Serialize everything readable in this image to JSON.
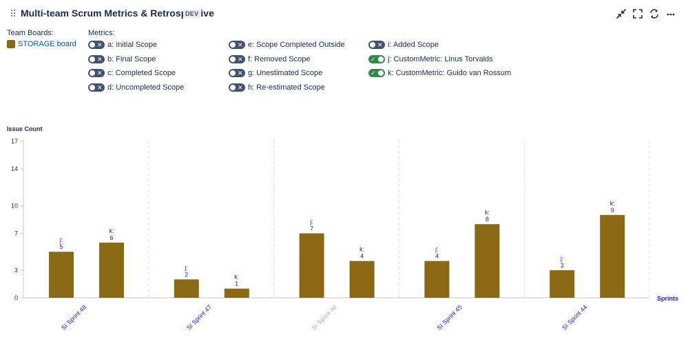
{
  "header": {
    "title": "Multi-team Scrum Metrics & Retrospective",
    "badge": "DEV",
    "icons": [
      "collapse-icon",
      "fullscreen-icon",
      "refresh-icon",
      "more-icon"
    ]
  },
  "team_boards": {
    "label": "Team Boards:",
    "items": [
      {
        "label": "STORAGE board",
        "color": "#8b6914"
      }
    ]
  },
  "metrics": {
    "label": "Metrics:",
    "items": [
      {
        "label": "a: Initial Scope",
        "on": false
      },
      {
        "label": "b: Final Scope",
        "on": false
      },
      {
        "label": "c: Completed Scope",
        "on": false
      },
      {
        "label": "d: Uncompleted Scope",
        "on": false
      },
      {
        "label": "e: Scope Completed Outside",
        "on": false
      },
      {
        "label": "f: Removed Scope",
        "on": false
      },
      {
        "label": "g: Unestimated Scope",
        "on": false
      },
      {
        "label": "h: Re-estimated Scope",
        "on": false
      },
      {
        "label": "i: Added Scope",
        "on": false
      },
      {
        "label": "j: CustomMetric: Linus Torvalds",
        "on": true
      },
      {
        "label": "k: CustomMetric: Guido van Rossum",
        "on": true
      }
    ]
  },
  "colors": {
    "bar": "#8b6914",
    "label": "#1a1ad6",
    "tick": "#1a1ad6",
    "tick_dim": "#9db0e6",
    "grid": "#d8dbe0",
    "axis": "#c1c7d0",
    "toggle_off": "#42526e",
    "toggle_on": "#2c8a4f"
  },
  "chart_data": {
    "type": "bar",
    "ylabel": "Issue Count",
    "xlabel": "Sprints",
    "ylim": [
      0,
      17
    ],
    "yticks": [
      0,
      3,
      7,
      10,
      14,
      17
    ],
    "categories": [
      "SI Sprint 48",
      "SI Sprint 47",
      "SI Sprint 46",
      "SI Sprint 45",
      "SI Sprint 44"
    ],
    "dimmed_category": "SI Sprint 46",
    "series": [
      {
        "name": "j",
        "values": [
          5,
          2,
          7,
          4,
          3
        ]
      },
      {
        "name": "k",
        "values": [
          6,
          1,
          4,
          8,
          9
        ]
      }
    ]
  }
}
